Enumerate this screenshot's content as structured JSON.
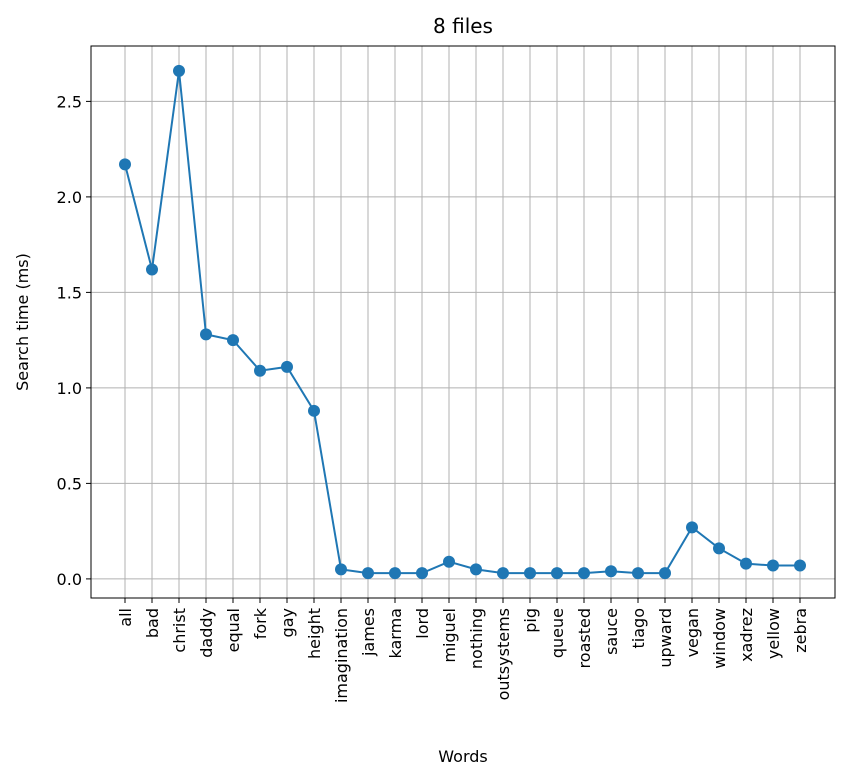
{
  "chart_data": {
    "type": "line",
    "title": "8 files",
    "xlabel": "Words",
    "ylabel": "Search time (ms)",
    "categories": [
      "all",
      "bad",
      "christ",
      "daddy",
      "equal",
      "fork",
      "gay",
      "height",
      "imagination",
      "james",
      "karma",
      "lord",
      "miguel",
      "nothing",
      "outsystems",
      "pig",
      "queue",
      "roasted",
      "sauce",
      "tiago",
      "upward",
      "vegan",
      "window",
      "xadrez",
      "yellow",
      "zebra"
    ],
    "series": [
      {
        "name": "",
        "values": [
          2.17,
          1.62,
          2.66,
          1.28,
          1.25,
          1.09,
          1.11,
          0.88,
          0.05,
          0.03,
          0.03,
          0.03,
          0.09,
          0.05,
          0.03,
          0.03,
          0.03,
          0.03,
          0.04,
          0.03,
          0.03,
          0.27,
          0.16,
          0.08,
          0.07,
          0.07
        ],
        "color": "#1f77b4"
      }
    ],
    "yticks": [
      "0.0",
      "0.5",
      "1.0",
      "1.5",
      "2.0",
      "2.5"
    ],
    "ylim": [
      -0.1,
      2.79
    ],
    "grid": true,
    "markers": true
  }
}
